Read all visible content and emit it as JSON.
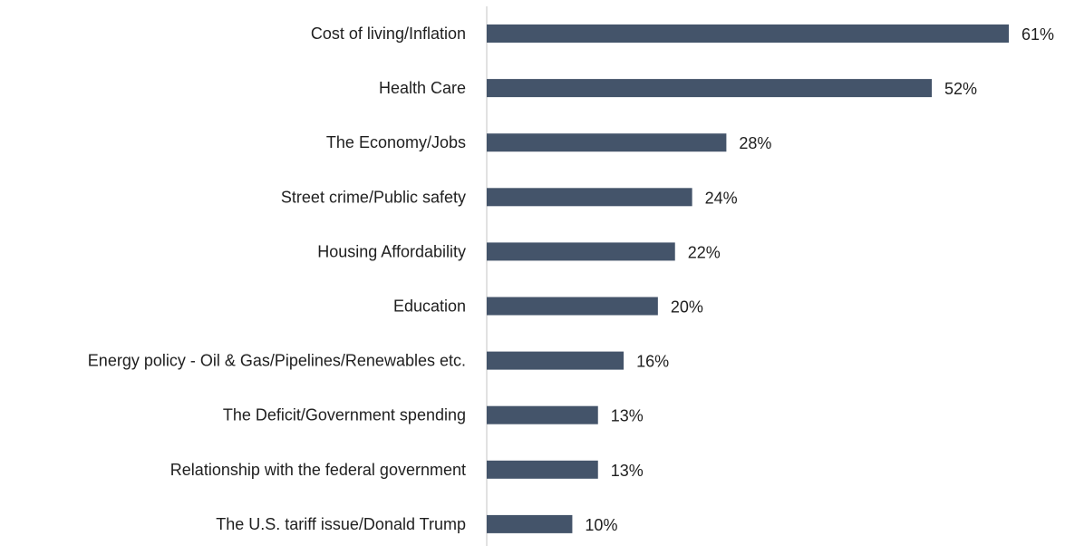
{
  "chart_data": {
    "type": "bar",
    "orientation": "horizontal",
    "title": "",
    "xlabel": "",
    "ylabel": "",
    "categories": [
      "Cost of living/Inflation",
      "Health Care",
      "The Economy/Jobs",
      "Street crime/Public safety",
      "Housing Affordability",
      "Education",
      "Energy policy - Oil & Gas/Pipelines/Renewables etc.",
      "The Deficit/Government spending",
      "Relationship with the federal government",
      "The U.S. tariff issue/Donald Trump"
    ],
    "values": [
      61,
      52,
      28,
      24,
      22,
      20,
      16,
      13,
      13,
      10
    ],
    "value_labels": [
      "61%",
      "52%",
      "28%",
      "24%",
      "22%",
      "20%",
      "16%",
      "13%",
      "13%",
      "10%"
    ],
    "unit": "%",
    "xlim": [
      0,
      61
    ],
    "grid": false,
    "legend": "none",
    "bar_color": "#44546a",
    "axis_color": "#d9d9d9"
  }
}
